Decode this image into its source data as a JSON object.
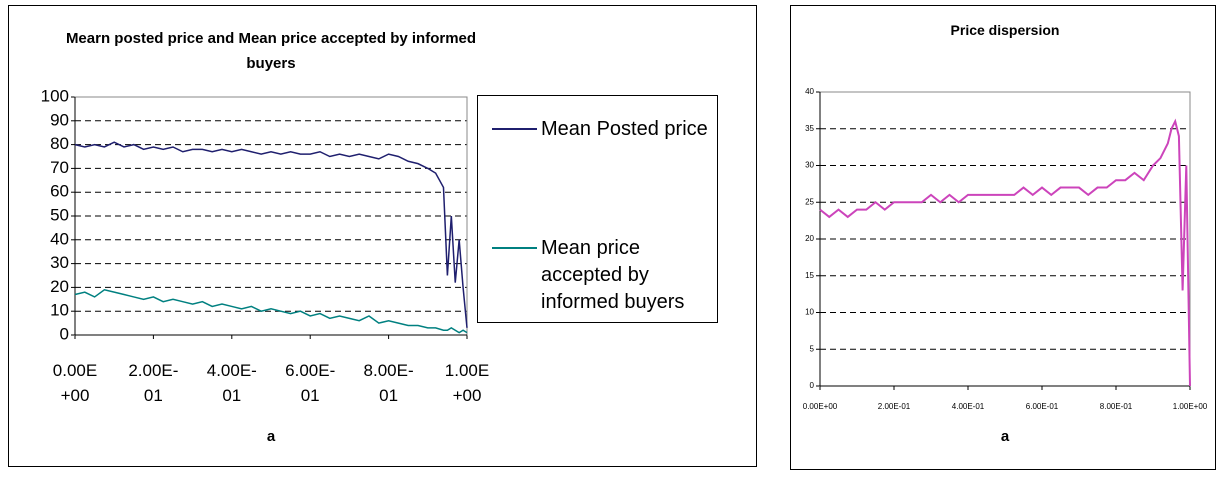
{
  "chart_data": [
    {
      "type": "line",
      "title": "Mearn posted price and Mean price accepted by informed buyers",
      "x_label": "a",
      "x": [
        0,
        0.025,
        0.05,
        0.075,
        0.1,
        0.125,
        0.15,
        0.175,
        0.2,
        0.225,
        0.25,
        0.275,
        0.3,
        0.325,
        0.35,
        0.375,
        0.4,
        0.425,
        0.45,
        0.475,
        0.5,
        0.525,
        0.55,
        0.575,
        0.6,
        0.625,
        0.65,
        0.675,
        0.7,
        0.725,
        0.75,
        0.775,
        0.8,
        0.825,
        0.85,
        0.875,
        0.9,
        0.92,
        0.94,
        0.95,
        0.96,
        0.97,
        0.98,
        0.99,
        1.0
      ],
      "series": [
        {
          "name": "Mean Posted price",
          "color": "#1f1f6e",
          "values": [
            80,
            79,
            80,
            79,
            81,
            79,
            80,
            78,
            79,
            78,
            79,
            77,
            78,
            78,
            77,
            78,
            77,
            78,
            77,
            76,
            77,
            76,
            77,
            76,
            76,
            77,
            75,
            76,
            75,
            76,
            75,
            74,
            76,
            75,
            73,
            72,
            70,
            68,
            62,
            25,
            50,
            22,
            40,
            20,
            3
          ]
        },
        {
          "name": "Mean price accepted by informed buyers",
          "color": "#008080",
          "values": [
            17,
            18,
            16,
            19,
            18,
            17,
            16,
            15,
            16,
            14,
            15,
            14,
            13,
            14,
            12,
            13,
            12,
            11,
            12,
            10,
            11,
            10,
            9,
            10,
            8,
            9,
            7,
            8,
            7,
            6,
            8,
            5,
            6,
            5,
            4,
            4,
            3,
            3,
            2,
            2,
            3,
            2,
            1,
            2,
            1
          ]
        }
      ],
      "xlim": [
        0,
        1
      ],
      "xticks": [
        {
          "value": 0,
          "label": "0.00E+00"
        },
        {
          "value": 0.2,
          "label": "2.00E-01"
        },
        {
          "value": 0.4,
          "label": "4.00E-01"
        },
        {
          "value": 0.6,
          "label": "6.00E-01"
        },
        {
          "value": 0.8,
          "label": "8.00E-01"
        },
        {
          "value": 1,
          "label": "1.00E+00"
        }
      ],
      "ylim": [
        0,
        100
      ],
      "yticks": [
        0,
        10,
        20,
        30,
        40,
        50,
        60,
        70,
        80,
        90,
        100
      ],
      "grid": true,
      "legend": "right"
    },
    {
      "type": "line",
      "title": "Price dispersion",
      "x_label": "a",
      "x": [
        0,
        0.025,
        0.05,
        0.075,
        0.1,
        0.125,
        0.15,
        0.175,
        0.2,
        0.225,
        0.25,
        0.275,
        0.3,
        0.325,
        0.35,
        0.375,
        0.4,
        0.425,
        0.45,
        0.475,
        0.5,
        0.525,
        0.55,
        0.575,
        0.6,
        0.625,
        0.65,
        0.675,
        0.7,
        0.725,
        0.75,
        0.775,
        0.8,
        0.825,
        0.85,
        0.875,
        0.9,
        0.92,
        0.94,
        0.95,
        0.96,
        0.97,
        0.98,
        0.99,
        1.0
      ],
      "values": [
        24,
        23,
        24,
        23,
        24,
        24,
        25,
        24,
        25,
        25,
        25,
        25,
        26,
        25,
        26,
        25,
        26,
        26,
        26,
        26,
        26,
        26,
        27,
        26,
        27,
        26,
        27,
        27,
        27,
        26,
        27,
        27,
        28,
        28,
        29,
        28,
        30,
        31,
        33,
        35,
        36,
        34,
        13,
        30,
        0
      ],
      "color": "#cc44bb",
      "xlim": [
        0,
        1
      ],
      "xticks": [
        {
          "value": 0,
          "label": "0.00E+00"
        },
        {
          "value": 0.2,
          "label": "2.00E-01"
        },
        {
          "value": 0.4,
          "label": "4.00E-01"
        },
        {
          "value": 0.6,
          "label": "6.00E-01"
        },
        {
          "value": 0.8,
          "label": "8.00E-01"
        },
        {
          "value": 1,
          "label": "1.00E+00"
        }
      ],
      "ylim": [
        0,
        40
      ],
      "yticks": [
        0,
        5,
        10,
        15,
        20,
        25,
        30,
        35,
        40
      ],
      "grid": true
    }
  ]
}
